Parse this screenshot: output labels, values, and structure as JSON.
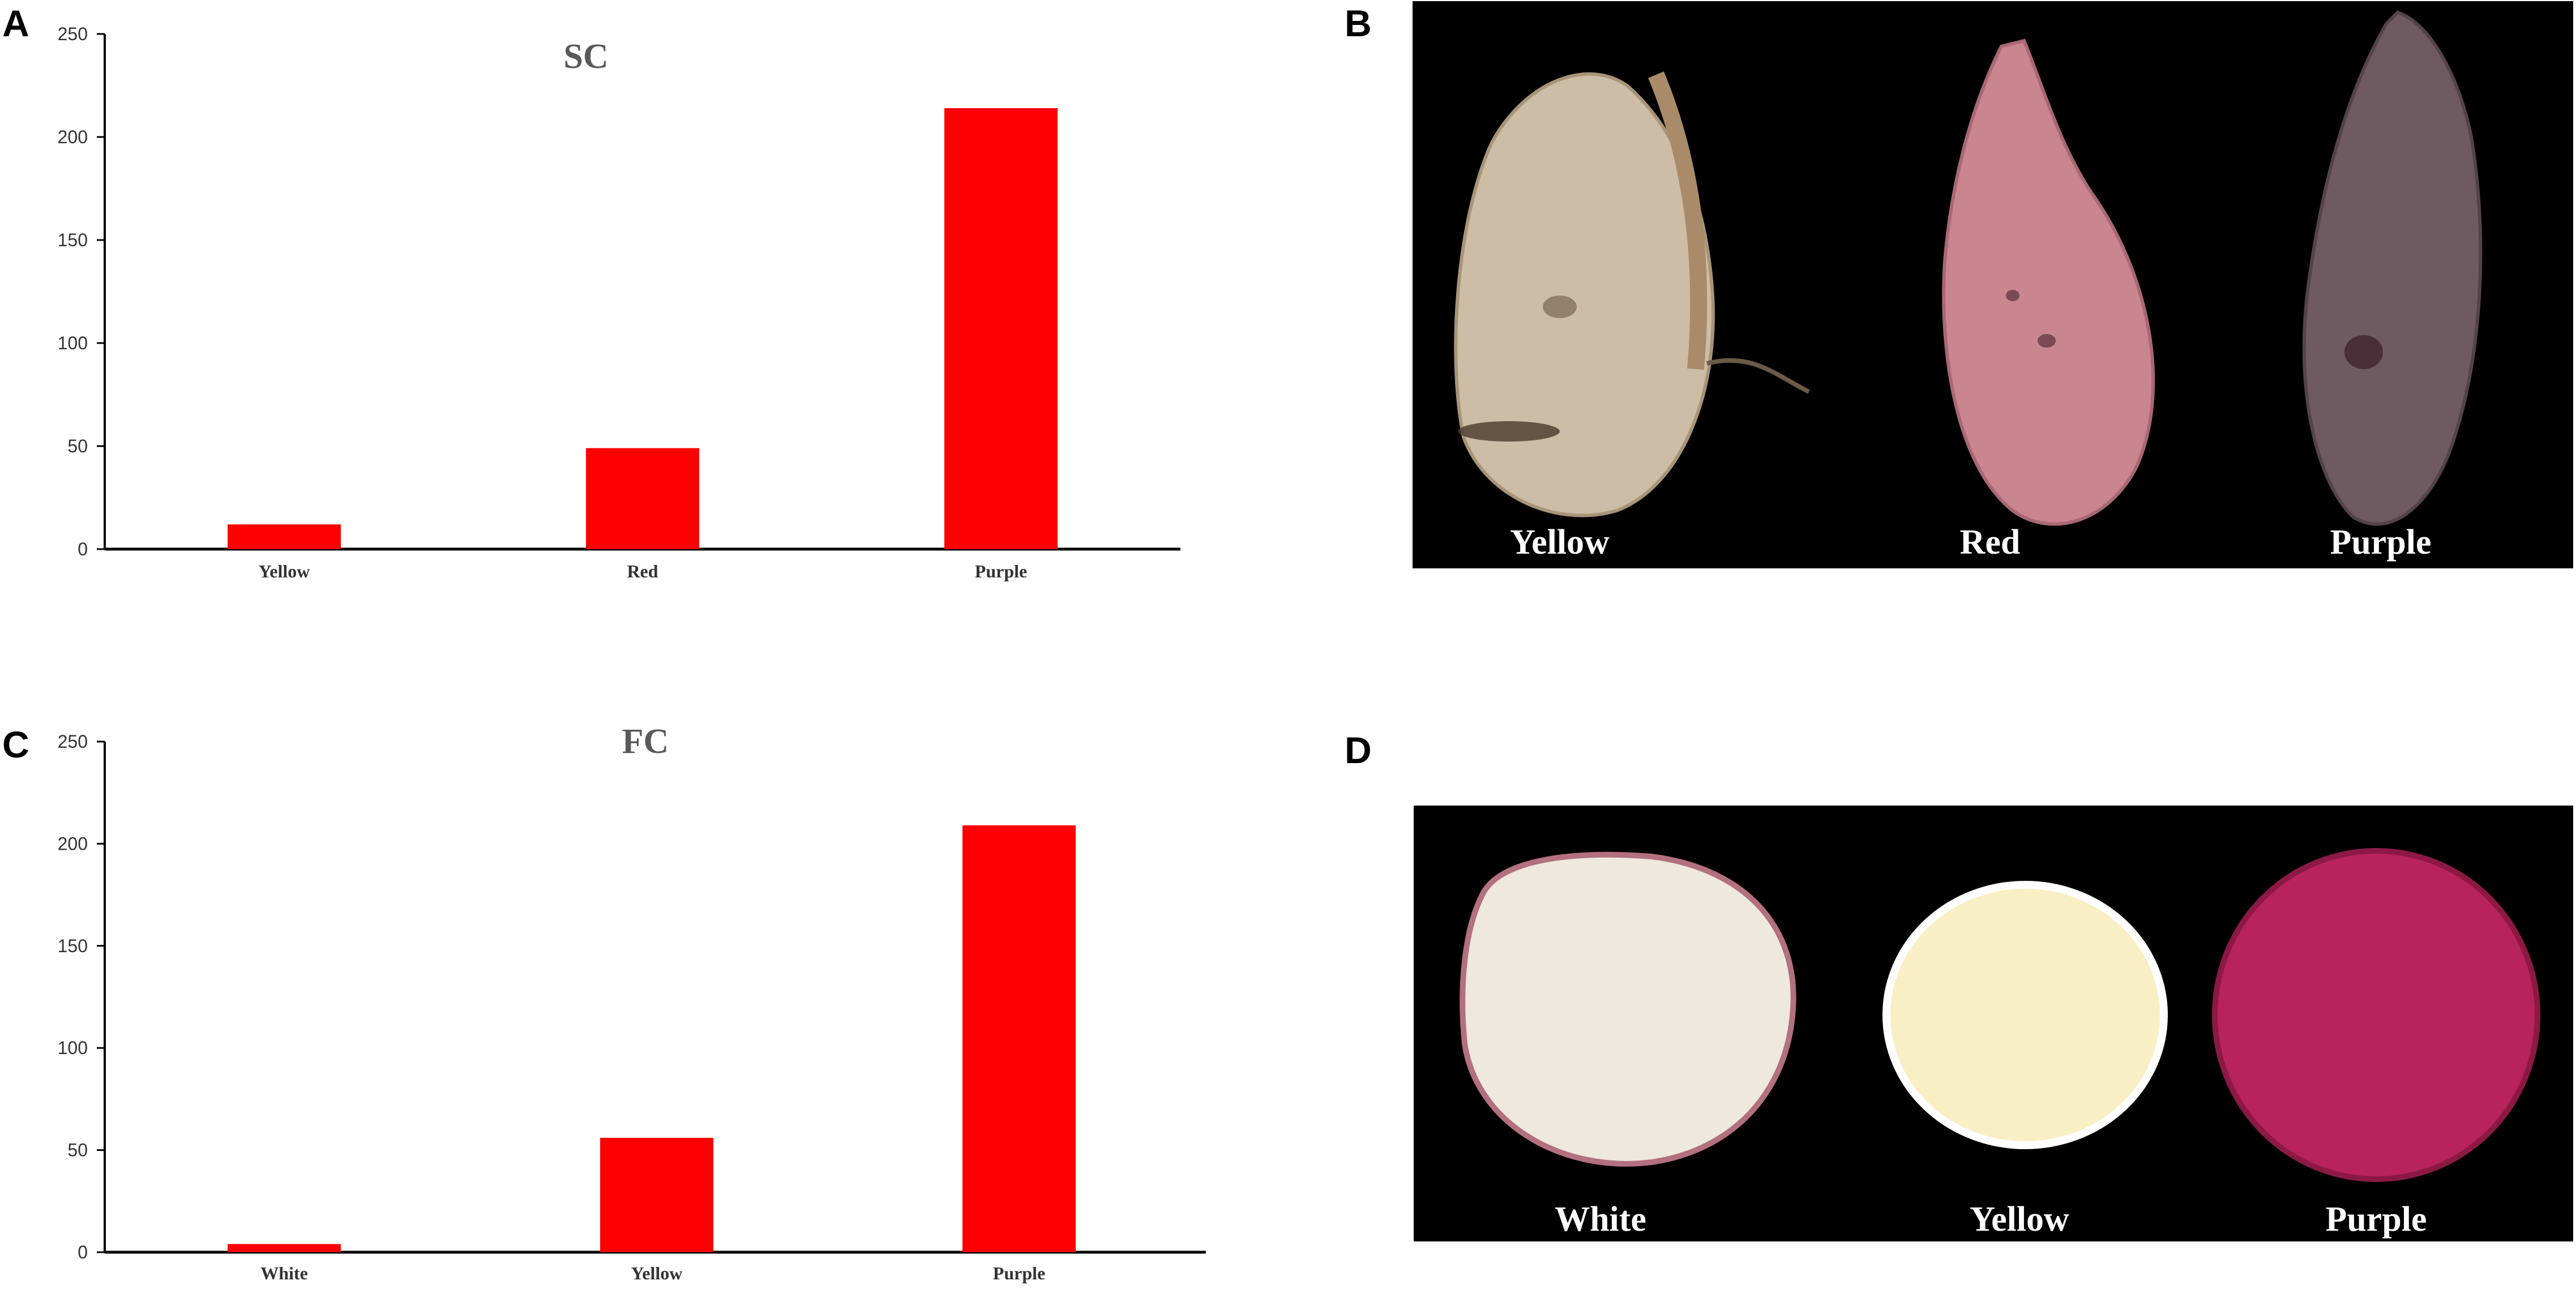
{
  "panels": {
    "a": {
      "letter": "A"
    },
    "b": {
      "letter": "B",
      "labels": [
        "Yellow",
        "Red",
        "Purple"
      ]
    },
    "c": {
      "letter": "C"
    },
    "d": {
      "letter": "D",
      "labels": [
        "White",
        "Yellow",
        "Purple"
      ]
    }
  },
  "colors": {
    "bar": "#ff0000",
    "axis": "#000000",
    "tick_text": "#333333",
    "title": "#595959",
    "photo_bg": "#000000"
  },
  "chart_data": [
    {
      "type": "bar",
      "title": "SC",
      "categories": [
        "Yellow",
        "Red",
        "Purple"
      ],
      "values": [
        12,
        49,
        214
      ],
      "ylim": [
        0,
        250
      ],
      "yticks": [
        0,
        50,
        100,
        150,
        200,
        250
      ],
      "xlabel": "",
      "ylabel": "",
      "grid": false
    },
    {
      "type": "bar",
      "title": "FC",
      "categories": [
        "White",
        "Yellow",
        "Purple"
      ],
      "values": [
        4,
        56,
        209
      ],
      "ylim": [
        0,
        250
      ],
      "yticks": [
        0,
        50,
        100,
        150,
        200,
        250
      ],
      "xlabel": "",
      "ylabel": "",
      "grid": false
    }
  ]
}
